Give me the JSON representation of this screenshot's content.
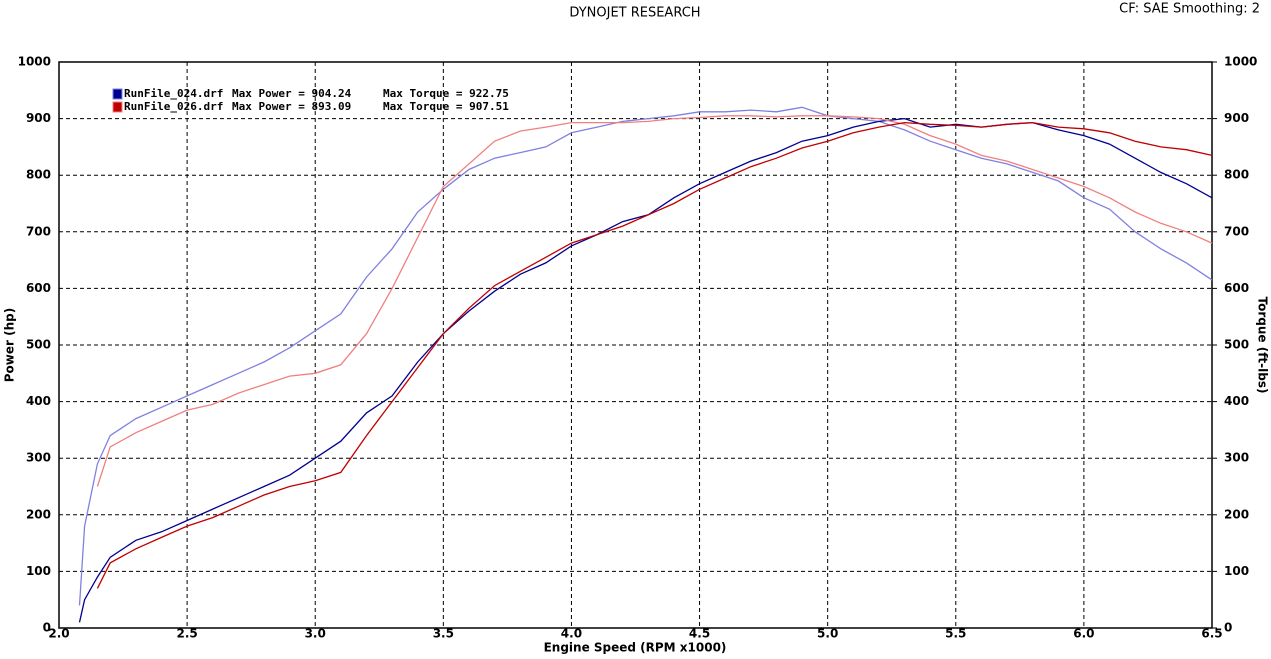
{
  "chart_data": {
    "type": "line",
    "title": "DYNOJET RESEARCH",
    "subtitle": "CF: SAE  Smoothing: 2",
    "x_label": "Engine Speed (RPM x1000)",
    "y_label": "Power (hp)",
    "y2_label": "Torque (ft-lbs)",
    "grid": true,
    "x": [
      2.08,
      2.1,
      2.15,
      2.2,
      2.3,
      2.4,
      2.5,
      2.6,
      2.7,
      2.8,
      2.9,
      3.0,
      3.1,
      3.2,
      3.3,
      3.4,
      3.5,
      3.6,
      3.7,
      3.8,
      3.9,
      4.0,
      4.1,
      4.2,
      4.3,
      4.4,
      4.5,
      4.6,
      4.7,
      4.8,
      4.9,
      5.0,
      5.1,
      5.2,
      5.3,
      5.4,
      5.5,
      5.6,
      5.7,
      5.8,
      5.9,
      6.0,
      6.1,
      6.2,
      6.3,
      6.4,
      6.5
    ],
    "xlim": [
      2,
      6.5
    ],
    "xticks": [
      {
        "value": 2,
        "label": "2.0"
      },
      2.5,
      {
        "value": 3,
        "label": "3.0"
      },
      3.5,
      {
        "value": 4,
        "label": "4.0"
      },
      4.5,
      {
        "value": 5,
        "label": "5.0"
      },
      5.5,
      {
        "value": 6,
        "label": "6.0"
      },
      6.5
    ],
    "ylim": [
      0,
      1000
    ],
    "yticks": [
      0,
      100,
      200,
      300,
      400,
      500,
      600,
      700,
      800,
      900,
      1000
    ],
    "y2lim": [
      0,
      1000
    ],
    "y2ticks": [
      0,
      100,
      200,
      300,
      400,
      500,
      600,
      700,
      800,
      900,
      1000
    ],
    "series": [
      {
        "name": "RunFile_024.drf",
        "color": "#000090",
        "torque_color": "#8080e0",
        "max_power": "Max Power = 904.24",
        "max_torque": "Max Torque = 922.75",
        "values": [
          10,
          50,
          90,
          125,
          155,
          170,
          190,
          210,
          230,
          250,
          270,
          300,
          330,
          380,
          410,
          470,
          520,
          560,
          595,
          625,
          645,
          675,
          695,
          718,
          730,
          760,
          785,
          805,
          825,
          840,
          860,
          870,
          885,
          895,
          900,
          885,
          890,
          885,
          890,
          893,
          880,
          870,
          855,
          830,
          805,
          785,
          760
        ],
        "torque": [
          40,
          180,
          290,
          340,
          370,
          390,
          410,
          430,
          450,
          470,
          495,
          525,
          555,
          620,
          670,
          735,
          775,
          810,
          830,
          840,
          850,
          875,
          885,
          895,
          900,
          905,
          912,
          912,
          915,
          912,
          920,
          905,
          900,
          895,
          880,
          860,
          845,
          830,
          820,
          805,
          790,
          760,
          740,
          700,
          670,
          645,
          615
        ]
      },
      {
        "name": "RunFile_026.drf",
        "color": "#c00000",
        "torque_color": "#f08080",
        "max_power": "Max Power = 893.09",
        "max_torque": "Max Torque = 907.51",
        "values": [
          null,
          null,
          70,
          115,
          140,
          160,
          180,
          195,
          215,
          235,
          250,
          260,
          275,
          340,
          400,
          460,
          520,
          565,
          605,
          630,
          655,
          680,
          695,
          710,
          730,
          750,
          775,
          795,
          815,
          830,
          848,
          860,
          875,
          885,
          893,
          890,
          888,
          885,
          890,
          893,
          885,
          882,
          875,
          860,
          850,
          845,
          835
        ],
        "torque": [
          null,
          null,
          250,
          320,
          345,
          365,
          385,
          395,
          415,
          430,
          445,
          450,
          465,
          520,
          600,
          690,
          780,
          820,
          860,
          878,
          885,
          893,
          893,
          893,
          895,
          900,
          902,
          905,
          905,
          903,
          905,
          905,
          903,
          900,
          890,
          870,
          855,
          835,
          825,
          810,
          795,
          780,
          760,
          735,
          715,
          700,
          680
        ]
      }
    ]
  }
}
